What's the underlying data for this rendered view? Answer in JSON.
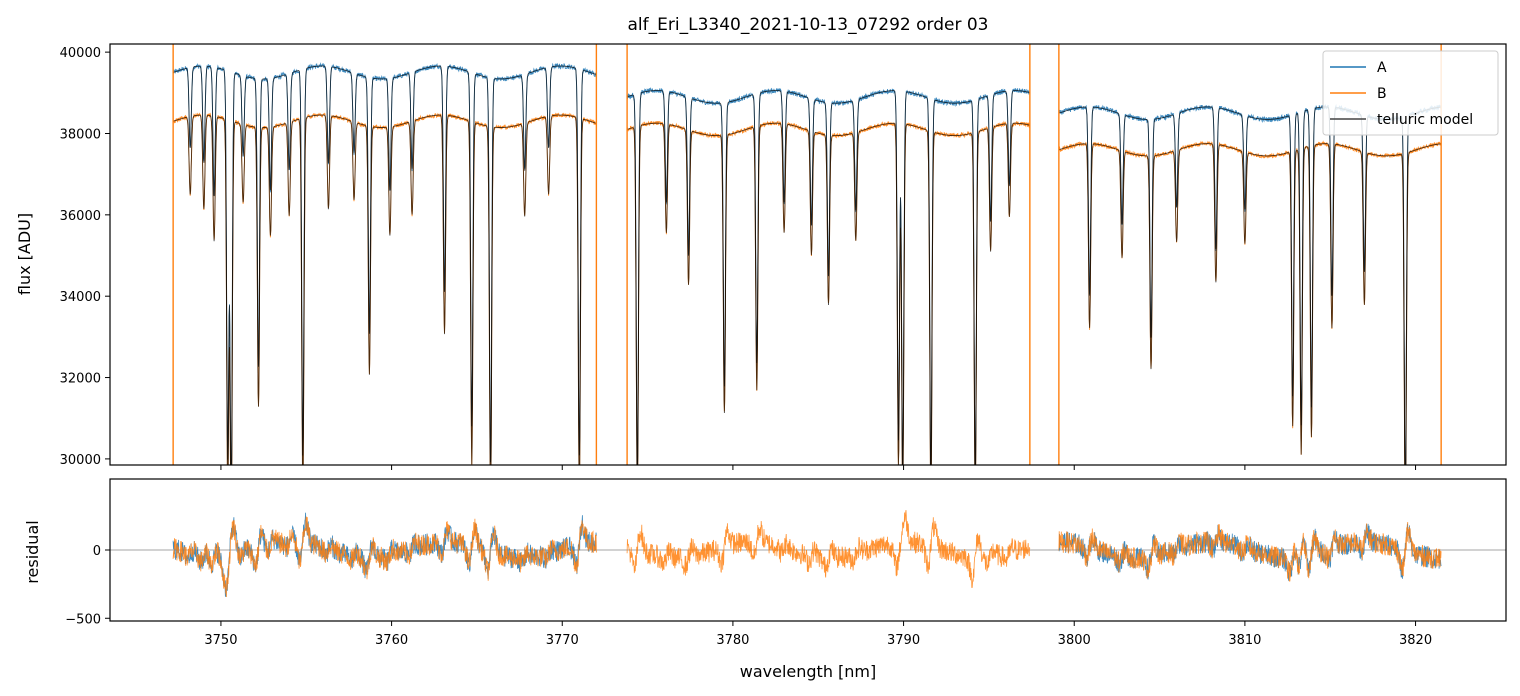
{
  "chart_data": [
    {
      "type": "line",
      "title": "alf_Eri_L3340_2021-10-13_07292  order 03",
      "xlabel": "",
      "ylabel": "flux [ADU]",
      "xlim": [
        3743.5,
        3825.3
      ],
      "ylim": [
        29850,
        40200
      ],
      "x_ticks": [
        3750,
        3760,
        3770,
        3780,
        3790,
        3800,
        3810,
        3820
      ],
      "y_ticks": [
        30000,
        32000,
        34000,
        36000,
        38000,
        40000
      ],
      "y_tick_labels": [
        "30000",
        "32000",
        "34000",
        "36000",
        "38000",
        "40000"
      ],
      "legend": {
        "placement": "top-right",
        "entries": [
          "A",
          "B",
          "telluric model"
        ]
      },
      "segments": [
        {
          "range": [
            3747.2,
            3772.0
          ],
          "continuum_A": 39500,
          "continuum_B": 38300
        },
        {
          "range": [
            3773.8,
            3797.4
          ],
          "continuum_A": 38900,
          "continuum_B": 38100
        },
        {
          "range": [
            3799.1,
            3821.5
          ],
          "continuum_A": 38500,
          "continuum_B": 37600
        }
      ],
      "absorption_lines": [
        {
          "x": 3748.2,
          "depth": 0.05
        },
        {
          "x": 3749.0,
          "depth": 0.06
        },
        {
          "x": 3749.6,
          "depth": 0.08
        },
        {
          "x": 3750.4,
          "depth": 0.24
        },
        {
          "x": 3750.6,
          "depth": 0.26
        },
        {
          "x": 3751.3,
          "depth": 0.05
        },
        {
          "x": 3752.2,
          "depth": 0.18
        },
        {
          "x": 3752.9,
          "depth": 0.07
        },
        {
          "x": 3754.0,
          "depth": 0.06
        },
        {
          "x": 3754.8,
          "depth": 0.24
        },
        {
          "x": 3756.3,
          "depth": 0.06
        },
        {
          "x": 3757.8,
          "depth": 0.05
        },
        {
          "x": 3758.7,
          "depth": 0.16
        },
        {
          "x": 3759.9,
          "depth": 0.07
        },
        {
          "x": 3761.2,
          "depth": 0.06
        },
        {
          "x": 3763.1,
          "depth": 0.14
        },
        {
          "x": 3764.7,
          "depth": 0.22
        },
        {
          "x": 3765.8,
          "depth": 0.24
        },
        {
          "x": 3767.8,
          "depth": 0.06
        },
        {
          "x": 3769.2,
          "depth": 0.05
        },
        {
          "x": 3771.0,
          "depth": 0.24
        },
        {
          "x": 3774.4,
          "depth": 0.24
        },
        {
          "x": 3776.1,
          "depth": 0.07
        },
        {
          "x": 3777.4,
          "depth": 0.1
        },
        {
          "x": 3779.5,
          "depth": 0.18
        },
        {
          "x": 3781.4,
          "depth": 0.17
        },
        {
          "x": 3783.0,
          "depth": 0.07
        },
        {
          "x": 3784.6,
          "depth": 0.08
        },
        {
          "x": 3785.6,
          "depth": 0.11
        },
        {
          "x": 3787.2,
          "depth": 0.07
        },
        {
          "x": 3789.7,
          "depth": 0.22
        },
        {
          "x": 3789.95,
          "depth": 0.24
        },
        {
          "x": 3791.6,
          "depth": 0.24
        },
        {
          "x": 3794.2,
          "depth": 0.24
        },
        {
          "x": 3795.1,
          "depth": 0.08
        },
        {
          "x": 3796.2,
          "depth": 0.06
        },
        {
          "x": 3800.9,
          "depth": 0.12
        },
        {
          "x": 3802.8,
          "depth": 0.07
        },
        {
          "x": 3804.5,
          "depth": 0.14
        },
        {
          "x": 3806.0,
          "depth": 0.06
        },
        {
          "x": 3808.3,
          "depth": 0.09
        },
        {
          "x": 3810.0,
          "depth": 0.06
        },
        {
          "x": 3812.8,
          "depth": 0.18
        },
        {
          "x": 3813.3,
          "depth": 0.2
        },
        {
          "x": 3813.9,
          "depth": 0.19
        },
        {
          "x": 3815.1,
          "depth": 0.12
        },
        {
          "x": 3817.0,
          "depth": 0.1
        },
        {
          "x": 3819.4,
          "depth": 0.24
        }
      ],
      "spikes": [
        3747.2,
        3772.0,
        3773.8,
        3797.4,
        3799.1,
        3821.5
      ],
      "colors": {
        "A": "#1f77b4",
        "B": "#ff7f0e",
        "telluric model": "#000000"
      }
    },
    {
      "type": "line",
      "xlabel": "wavelength [nm]",
      "ylabel": "residual",
      "xlim": [
        3743.5,
        3825.3
      ],
      "ylim": [
        -520,
        520
      ],
      "x_ticks": [
        3750,
        3760,
        3770,
        3780,
        3790,
        3800,
        3810,
        3820
      ],
      "x_tick_labels": [
        "3750",
        "3760",
        "3770",
        "3780",
        "3790",
        "3800",
        "3810",
        "3820"
      ],
      "y_ticks": [
        -500,
        0
      ],
      "y_tick_labels": [
        "−500",
        "0"
      ],
      "zero_line": true,
      "series": [
        {
          "name": "A",
          "ranges": [
            [
              3747.2,
              3772.0
            ],
            [
              3799.1,
              3821.5
            ]
          ]
        },
        {
          "name": "B",
          "ranges": [
            [
              3747.2,
              3772.0
            ],
            [
              3773.8,
              3797.4
            ],
            [
              3799.1,
              3821.5
            ]
          ]
        }
      ]
    }
  ]
}
